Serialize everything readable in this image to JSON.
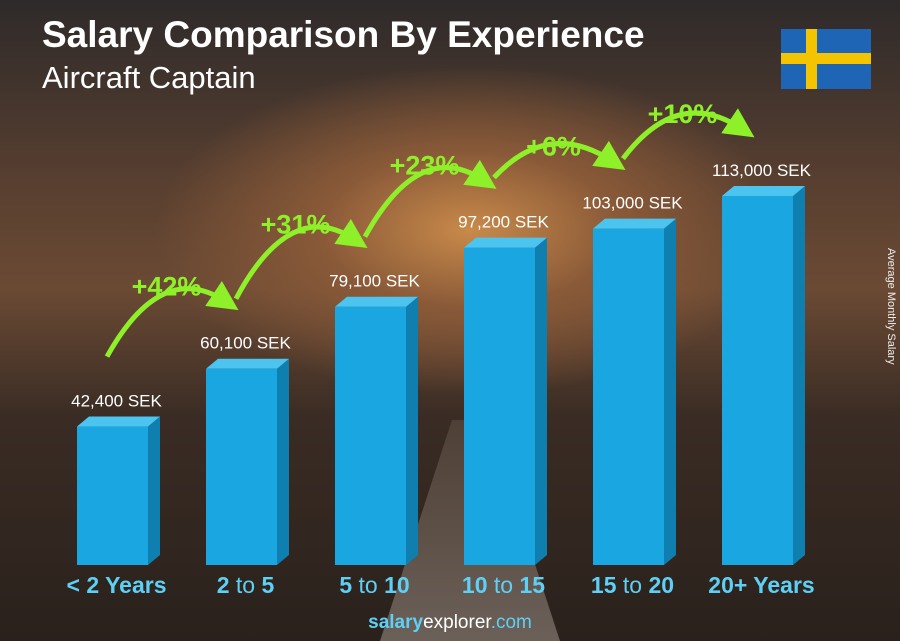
{
  "title": "Salary Comparison By Experience",
  "subtitle": "Aircraft Captain",
  "ylabel": "Average Monthly Salary",
  "footer": {
    "salary": "salary",
    "explorer": "explorer",
    ".com": ".com"
  },
  "colors": {
    "bar": "#1aa6e0",
    "bar_side": "#0f7fb0",
    "bar_top": "#4cc4f0",
    "label": "#5fd0f5",
    "pct": "#8ef029"
  },
  "chart_data": {
    "type": "bar",
    "title": "Salary Comparison By Experience",
    "subtitle": "Aircraft Captain",
    "ylabel": "Average Monthly Salary",
    "unit": "SEK",
    "categories": [
      [
        "< 2 Years"
      ],
      [
        "2",
        "to",
        "5"
      ],
      [
        "5",
        "to",
        "10"
      ],
      [
        "10",
        "to",
        "15"
      ],
      [
        "15",
        "to",
        "20"
      ],
      [
        "20+ Years"
      ]
    ],
    "values": [
      42400,
      60100,
      79100,
      97200,
      103000,
      113000
    ],
    "value_labels": [
      "42,400 SEK",
      "60,100 SEK",
      "79,100 SEK",
      "97,200 SEK",
      "103,000 SEK",
      "113,000 SEK"
    ],
    "increases": [
      "+42%",
      "+31%",
      "+23%",
      "+6%",
      "+10%"
    ]
  }
}
